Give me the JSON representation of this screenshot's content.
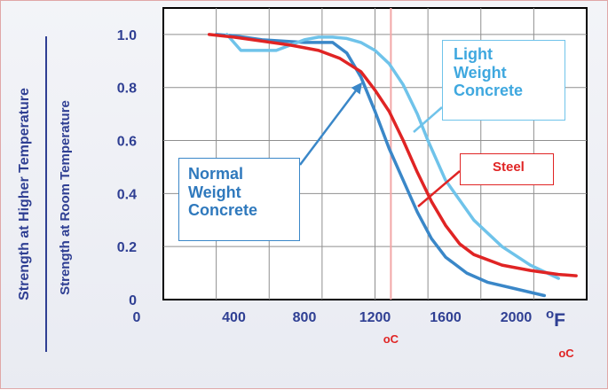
{
  "chart_data": {
    "type": "line",
    "ylabel_top": "Strength at Higher Temperature",
    "ylabel_bottom": "Strength at Room Temperature",
    "x_unit": "oF",
    "x_ticks": [
      "0",
      "400",
      "800",
      "1200",
      "1600",
      "2000"
    ],
    "y_ticks": [
      "1.0",
      "0.8",
      "0.6",
      "0.4",
      "0.2",
      "0"
    ],
    "xlim": [
      0,
      2400
    ],
    "ylim": [
      0,
      1.1
    ],
    "grid": true,
    "marker_x": 1290,
    "marker_label": "oC",
    "corner_label": "oC",
    "series": [
      {
        "name": "Normal Weight Concrete",
        "color": "#3a87c8",
        "points": [
          [
            300,
            1.0
          ],
          [
            400,
            0.995
          ],
          [
            560,
            0.98
          ],
          [
            800,
            0.97
          ],
          [
            960,
            0.97
          ],
          [
            1040,
            0.93
          ],
          [
            1120,
            0.84
          ],
          [
            1200,
            0.71
          ],
          [
            1280,
            0.57
          ],
          [
            1360,
            0.45
          ],
          [
            1440,
            0.33
          ],
          [
            1520,
            0.23
          ],
          [
            1600,
            0.16
          ],
          [
            1720,
            0.1
          ],
          [
            1840,
            0.065
          ],
          [
            2000,
            0.04
          ],
          [
            2160,
            0.015
          ]
        ]
      },
      {
        "name": "Light Weight Concrete",
        "color": "#6fc3ea",
        "points": [
          [
            360,
            1.0
          ],
          [
            440,
            0.94
          ],
          [
            560,
            0.94
          ],
          [
            640,
            0.94
          ],
          [
            720,
            0.96
          ],
          [
            800,
            0.98
          ],
          [
            880,
            0.99
          ],
          [
            960,
            0.99
          ],
          [
            1040,
            0.985
          ],
          [
            1120,
            0.97
          ],
          [
            1200,
            0.94
          ],
          [
            1280,
            0.89
          ],
          [
            1360,
            0.81
          ],
          [
            1440,
            0.7
          ],
          [
            1500,
            0.6
          ],
          [
            1600,
            0.45
          ],
          [
            1760,
            0.3
          ],
          [
            1920,
            0.2
          ],
          [
            2080,
            0.13
          ],
          [
            2240,
            0.08
          ]
        ]
      },
      {
        "name": "Steel",
        "color": "#e02424",
        "points": [
          [
            260,
            1.0
          ],
          [
            400,
            0.99
          ],
          [
            560,
            0.975
          ],
          [
            720,
            0.96
          ],
          [
            880,
            0.94
          ],
          [
            1000,
            0.91
          ],
          [
            1120,
            0.86
          ],
          [
            1200,
            0.79
          ],
          [
            1280,
            0.71
          ],
          [
            1360,
            0.6
          ],
          [
            1440,
            0.48
          ],
          [
            1520,
            0.37
          ],
          [
            1600,
            0.28
          ],
          [
            1680,
            0.21
          ],
          [
            1760,
            0.17
          ],
          [
            1920,
            0.13
          ],
          [
            2080,
            0.11
          ],
          [
            2240,
            0.095
          ],
          [
            2340,
            0.09
          ]
        ]
      }
    ],
    "callouts": [
      {
        "label_lines": [
          "Normal",
          "Weight",
          "Concrete"
        ],
        "color": "#3a87c8"
      },
      {
        "label_lines": [
          "Light",
          "Weight",
          "Concrete"
        ],
        "color": "#6fc3ea"
      },
      {
        "label_lines": [
          "Steel"
        ],
        "color": "#e02424"
      }
    ]
  }
}
